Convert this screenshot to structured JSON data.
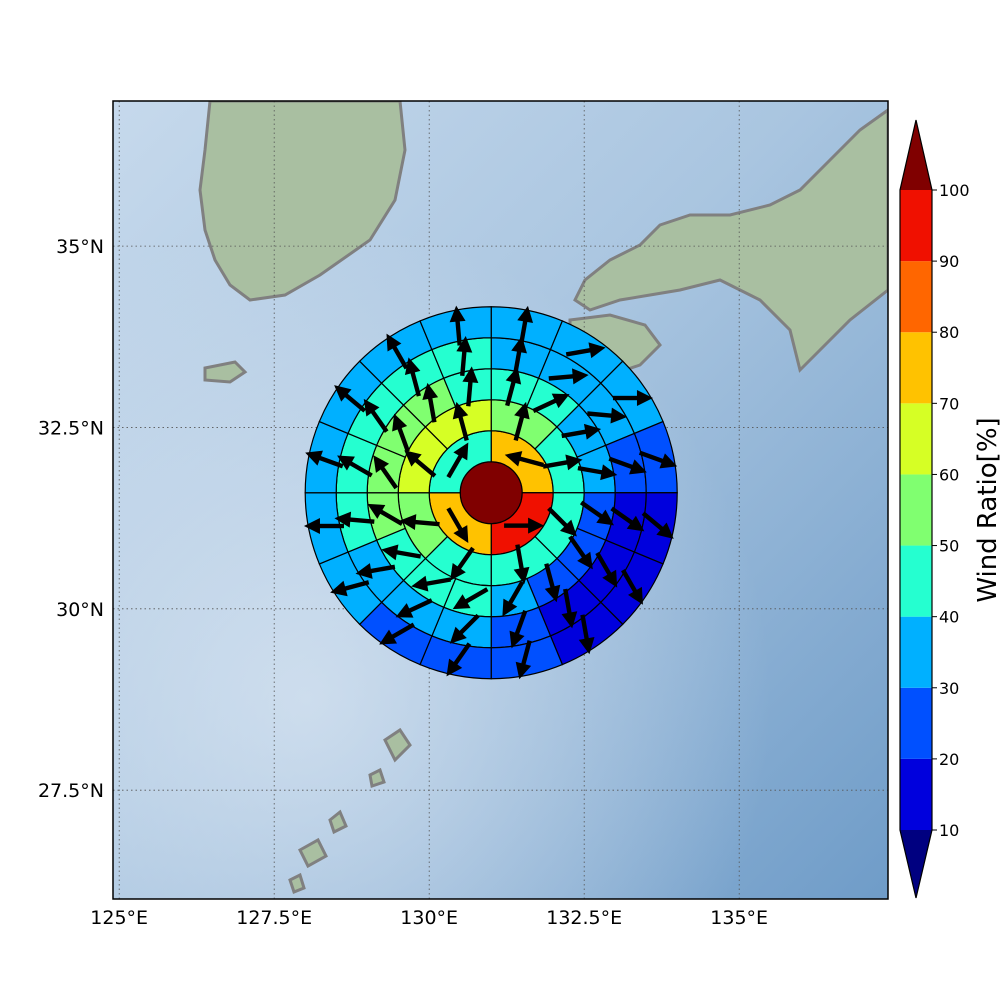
{
  "map": {
    "lon_range": [
      124.9,
      137.4
    ],
    "lat_range": [
      26.0,
      37.0
    ],
    "lon_ticks": [
      {
        "value": 125.0,
        "label": "125°E"
      },
      {
        "value": 127.5,
        "label": "127.5°E"
      },
      {
        "value": 130.0,
        "label": "130°E"
      },
      {
        "value": 132.5,
        "label": "132.5°E"
      },
      {
        "value": 135.0,
        "label": "135°E"
      }
    ],
    "lat_ticks": [
      {
        "value": 35.0,
        "label": "35°N"
      },
      {
        "value": 32.5,
        "label": "32.5°N"
      },
      {
        "value": 30.0,
        "label": "30°N"
      },
      {
        "value": 27.5,
        "label": "27.5°N"
      }
    ],
    "gridlines": "dotted",
    "background": "shaded relief",
    "coastline_color": "#808080"
  },
  "colorbar": {
    "label": "Wind Ratio[%]",
    "ticks": [
      "10",
      "20",
      "30",
      "40",
      "50",
      "60",
      "70",
      "80",
      "90",
      "100"
    ],
    "bounds": [
      10,
      20,
      30,
      40,
      50,
      60,
      70,
      80,
      90,
      100
    ],
    "colors": [
      "#0000dd",
      "#0050ff",
      "#00b0ff",
      "#25ffd0",
      "#80ff70",
      "#d6ff25",
      "#ffc200",
      "#ff6600",
      "#f01000"
    ],
    "under_color": "#000080",
    "over_color": "#800000",
    "extend": "both"
  },
  "chart_data": {
    "type": "heatmap",
    "center": {
      "lon": 131.0,
      "lat": 31.6
    },
    "ring_radii_deg": [
      0.5,
      1.0,
      1.5,
      2.0,
      2.5,
      3.0
    ],
    "sectors_per_ring": [
      1,
      4,
      8,
      16,
      16,
      16
    ],
    "sector_values": [
      [
        100
      ],
      [
        75,
        95,
        75,
        45
      ],
      [
        55,
        45,
        45,
        45,
        45,
        55,
        65,
        65
      ],
      [
        45,
        45,
        35,
        35,
        25,
        25,
        25,
        35,
        45,
        45,
        45,
        55,
        55,
        55,
        55,
        45
      ],
      [
        35,
        35,
        35,
        25,
        15,
        15,
        15,
        25,
        35,
        35,
        35,
        45,
        45,
        45,
        45,
        45
      ],
      [
        35,
        35,
        35,
        25,
        15,
        15,
        15,
        25,
        25,
        25,
        35,
        35,
        35,
        35,
        35,
        35
      ]
    ],
    "wind_direction_deg": [
      [],
      [
        -75,
        90,
        150,
        30
      ],
      [
        15,
        80,
        135,
        170,
        215,
        275,
        310,
        345
      ],
      [
        15,
        65,
        80,
        100,
        125,
        145,
        165,
        210,
        240,
        260,
        280,
        300,
        325,
        340,
        350,
        5
      ],
      [
        10,
        85,
        95,
        110,
        125,
        150,
        170,
        200,
        225,
        245,
        260,
        275,
        300,
        325,
        345,
        5
      ],
      [
        10,
        80,
        90,
        110,
        130,
        150,
        170,
        195,
        215,
        240,
        255,
        270,
        290,
        310,
        330,
        355
      ]
    ],
    "value_unit": "%"
  }
}
